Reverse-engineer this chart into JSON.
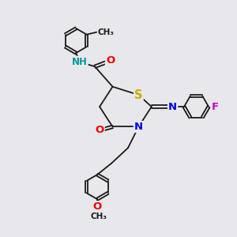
{
  "bg_color": "#e8e8ec",
  "bond_color": "#1a1a1a",
  "bond_width": 1.3,
  "atom_colors": {
    "N": "#0000ee",
    "O": "#ee0000",
    "S": "#ccaa00",
    "F": "#cc00cc",
    "NH": "#009999",
    "C": "#1a1a1a"
  },
  "font_size": 8.5,
  "xlim": [
    0.0,
    10.0
  ],
  "ylim": [
    0.0,
    10.0
  ]
}
